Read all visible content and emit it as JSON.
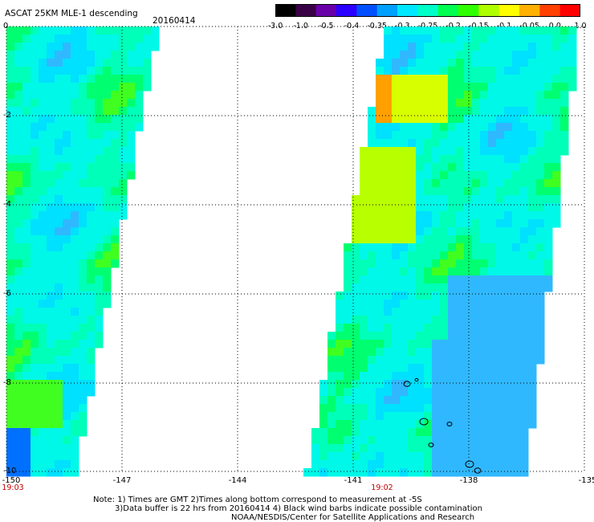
{
  "header": {
    "title": "ASCAT 25KM MLE-1 descending",
    "date": "20160414"
  },
  "colorbar": {
    "labels": [
      "-3.0",
      "-1.0",
      "-0.5",
      "-0.4",
      "-0.35",
      "-0.3",
      "-0.25",
      "-0.2",
      "-0.15",
      "-0.1",
      "-0.05",
      "0.0",
      "1.0"
    ],
    "colors": [
      "#000000",
      "#3a0046",
      "#6a00a8",
      "#2a00ff",
      "#0050ff",
      "#00a0ff",
      "#00e8ff",
      "#00ffc8",
      "#00ff50",
      "#30ff00",
      "#b0ff00",
      "#ffff00",
      "#ffb000",
      "#ff4000",
      "#ff0000"
    ]
  },
  "map": {
    "y_ticks": [
      "0",
      "-2",
      "-4",
      "-6",
      "-8",
      "-10"
    ],
    "x_ticks": [
      "-150",
      "-147",
      "-144",
      "-141",
      "-138",
      "-135"
    ],
    "times": [
      "19:03",
      "19:02"
    ]
  },
  "notes": {
    "line1": "Note: 1) Times are GMT 2)Times along bottom correspond to measurement at -5S",
    "line2": "3)Data buffer is 22 hrs from 20160414 4) Black wind barbs indicate possible contamination",
    "line3": "NOAA/NESDIS/Center for Satellite Applications and Research"
  }
}
